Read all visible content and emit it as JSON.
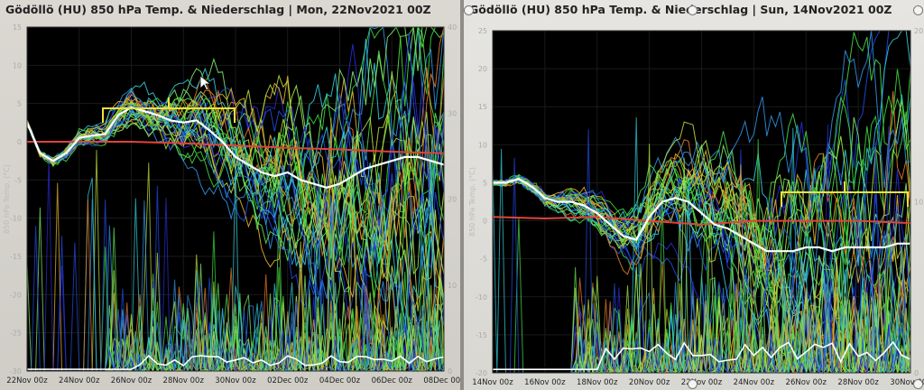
{
  "chart_data": [
    {
      "type": "line",
      "title": "Gödöllö  (HU)  850 hPa Temp. & Niederschlag | Mon, 22Nov2021 00Z",
      "ylabel": "850 hPa Temp. (°C)",
      "ylim": [
        -30,
        15
      ],
      "yticks": [
        15,
        10,
        5,
        0,
        -5,
        -10,
        -15,
        -20,
        -25,
        -30
      ],
      "y2lim": [
        0,
        40
      ],
      "y2ticks": [
        40,
        30,
        20,
        10,
        0
      ],
      "xrange": [
        0,
        16
      ],
      "xticks": [
        {
          "x": 0,
          "label": "22Nov 00z"
        },
        {
          "x": 2,
          "label": "24Nov 00z"
        },
        {
          "x": 4,
          "label": "26Nov 00z"
        },
        {
          "x": 6,
          "label": "28Nov 00z"
        },
        {
          "x": 8,
          "label": "30Nov 00z"
        },
        {
          "x": 10,
          "label": "02Dec 00z"
        },
        {
          "x": 12,
          "label": "04Dec 00z"
        },
        {
          "x": 14,
          "label": "06Dec 00z"
        },
        {
          "x": 16,
          "label": "08Dec 00z"
        }
      ],
      "ensemble_members": 30,
      "series": [
        {
          "role": "mean",
          "color": "#ffffff",
          "x": [
            0,
            0.5,
            1,
            1.5,
            2,
            2.5,
            3,
            3.5,
            4,
            4.5,
            5,
            5.5,
            6,
            6.5,
            7,
            7.5,
            8,
            8.5,
            9,
            9.5,
            10,
            10.5,
            11,
            11.5,
            12,
            12.5,
            13,
            13.5,
            14,
            14.5,
            15,
            15.5,
            16
          ],
          "values": [
            2.5,
            -1.5,
            -2.5,
            -1.5,
            0.5,
            0.8,
            1.0,
            3.5,
            4.5,
            4.0,
            3.5,
            2.8,
            2.5,
            2.8,
            1.5,
            0.0,
            -2.0,
            -3.0,
            -4.0,
            -4.5,
            -4.0,
            -5.0,
            -5.5,
            -6.0,
            -5.5,
            -4.5,
            -3.5,
            -3.0,
            -2.5,
            -2.0,
            -2.0,
            -2.5,
            -3.0
          ]
        },
        {
          "role": "climatology",
          "color": "#e0443a",
          "x": [
            0,
            2,
            4,
            6,
            8,
            10,
            12,
            14,
            16
          ],
          "values": [
            0.0,
            0.0,
            0.0,
            -0.2,
            -0.5,
            -0.8,
            -1.0,
            -1.3,
            -1.5
          ]
        }
      ]
    },
    {
      "type": "line",
      "title": "Gödöllö  (HU)  850 hPa Temp. & Niederschlag | Sun, 14Nov2021 00Z",
      "ylabel": "850 hPa Temp. (°C)",
      "ylim": [
        -20,
        25
      ],
      "yticks": [
        25,
        20,
        15,
        10,
        5,
        0,
        -5,
        -10,
        -15,
        -20
      ],
      "y2lim": [
        0,
        20
      ],
      "y2ticks": [
        20,
        10,
        0
      ],
      "xrange": [
        0,
        16
      ],
      "xticks": [
        {
          "x": 0,
          "label": "14Nov 00z"
        },
        {
          "x": 2,
          "label": "16Nov 00z"
        },
        {
          "x": 4,
          "label": "18Nov 00z"
        },
        {
          "x": 6,
          "label": "20Nov 00z"
        },
        {
          "x": 8,
          "label": "22Nov 00z"
        },
        {
          "x": 10,
          "label": "24Nov 00z"
        },
        {
          "x": 12,
          "label": "26Nov 00z"
        },
        {
          "x": 14,
          "label": "28Nov 00z"
        },
        {
          "x": 16,
          "label": "30Nov 00z"
        }
      ],
      "ensemble_members": 30,
      "series": [
        {
          "role": "mean",
          "color": "#ffffff",
          "x": [
            0,
            0.5,
            1,
            1.5,
            2,
            2.5,
            3,
            3.5,
            4,
            4.5,
            5,
            5.5,
            6,
            6.5,
            7,
            7.5,
            8,
            8.5,
            9,
            9.5,
            10,
            10.5,
            11,
            11.5,
            12,
            12.5,
            13,
            13.5,
            14,
            14.5,
            15,
            15.5,
            16
          ],
          "values": [
            5.0,
            5.0,
            5.5,
            4.5,
            3.0,
            2.5,
            2.5,
            2.0,
            1.0,
            -0.5,
            -2.0,
            -2.5,
            0.5,
            2.5,
            3.0,
            2.5,
            1.0,
            -0.5,
            -1.0,
            -2.0,
            -3.0,
            -4.0,
            -4.0,
            -4.0,
            -3.5,
            -3.5,
            -4.0,
            -3.5,
            -3.5,
            -3.5,
            -3.5,
            -3.0,
            -3.0
          ]
        },
        {
          "role": "climatology",
          "color": "#e0443a",
          "x": [
            0,
            2,
            4,
            6,
            8,
            10,
            12,
            14,
            16
          ],
          "values": [
            0.5,
            0.3,
            0.5,
            0.0,
            -0.5,
            0.0,
            0.0,
            0.0,
            -0.3
          ]
        }
      ]
    }
  ]
}
